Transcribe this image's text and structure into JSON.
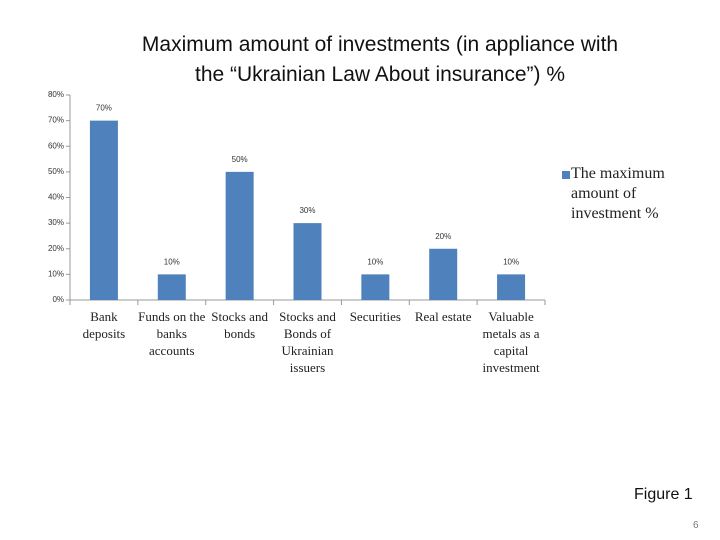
{
  "chart_data": {
    "type": "bar",
    "title": "Maximum amount of investments (in appliance with the “Ukrainian Law About insurance”) %",
    "categories": [
      "Bank deposits",
      "Funds on the banks accounts",
      "Stocks and bonds",
      "Stocks and Bonds of Ukrainian issuers",
      "Securities",
      "Real estate",
      "Valuable metals as a capital investment"
    ],
    "series": [
      {
        "name": "The maximum amount of investment %",
        "color": "#4f81bd",
        "values": [
          70,
          10,
          50,
          30,
          10,
          20,
          10
        ],
        "value_labels": [
          "70%",
          "10%",
          "50%",
          "30%",
          "10%",
          "20%",
          "10%"
        ]
      }
    ],
    "ylim": [
      0,
      80
    ],
    "yticks": [
      {
        "value": 0,
        "label": "0%"
      },
      {
        "value": 10,
        "label": "10%"
      },
      {
        "value": 20,
        "label": "20%"
      },
      {
        "value": 30,
        "label": "30%"
      },
      {
        "value": 40,
        "label": "40%"
      },
      {
        "value": 50,
        "label": "50%"
      },
      {
        "value": 60,
        "label": "60%"
      },
      {
        "value": 70,
        "label": "70%"
      },
      {
        "value": 80,
        "label": "80%"
      }
    ],
    "grid": false,
    "legend": "right"
  },
  "figure_label": "Figure 1",
  "page_number": "6"
}
